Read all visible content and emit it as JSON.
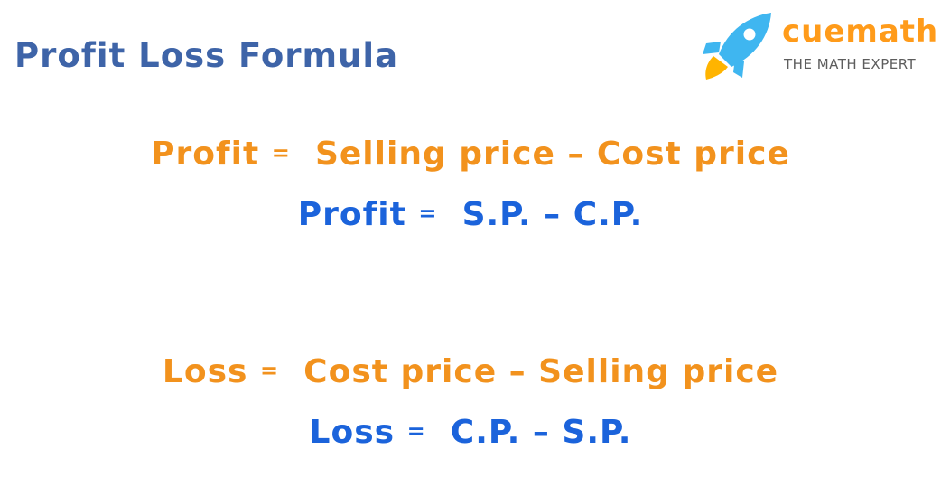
{
  "page_title": "Profit Loss Formula",
  "logo": {
    "icon": "rocket-icon",
    "wordmark": "cuemath",
    "tagline": "THE MATH EXPERT",
    "colors": {
      "wordmark": "#ff9b1a",
      "rocket_body": "#3fb6f0",
      "rocket_flame": "#ffb400",
      "tagline": "#5d5d5d"
    }
  },
  "formulas": {
    "profit_words": {
      "lhs": "Profit",
      "op": "=",
      "rhs": "Selling price – Cost price"
    },
    "profit_abbrev": {
      "lhs": "Profit",
      "op": "=",
      "rhs": "S.P. – C.P."
    },
    "loss_words": {
      "lhs": "Loss",
      "op": "=",
      "rhs": "Cost price – Selling price"
    },
    "loss_abbrev": {
      "lhs": "Loss",
      "op": "=",
      "rhs": "C.P. – S.P."
    }
  },
  "colors": {
    "title": "#3e64a8",
    "word_formula": "#f2921d",
    "abbrev_formula": "#1b63db"
  }
}
